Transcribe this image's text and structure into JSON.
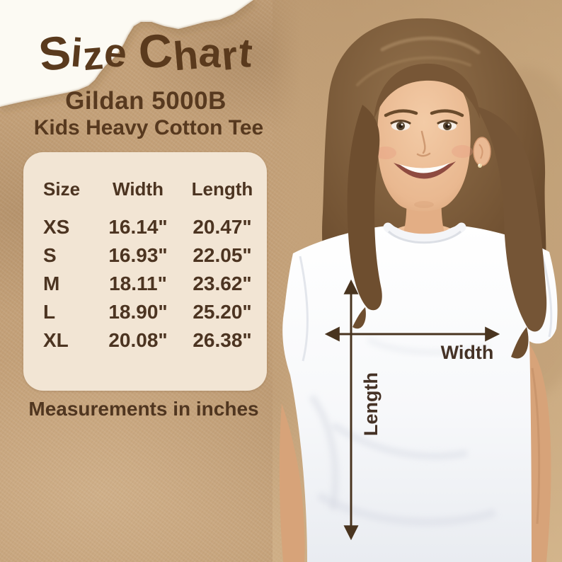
{
  "title": "Size Chart",
  "subtitle_model": "Gildan 5000B",
  "subtitle_product": "Kids Heavy Cotton Tee",
  "caption": "Measurements in inches",
  "table": {
    "headers": [
      "Size",
      "Width",
      "Length"
    ],
    "rows": [
      {
        "size": "XS",
        "width": "16.14\"",
        "length": "20.47\""
      },
      {
        "size": "S",
        "width": "16.93\"",
        "length": "22.05\""
      },
      {
        "size": "M",
        "width": "18.11\"",
        "length": "23.62\""
      },
      {
        "size": "L",
        "width": "18.90\"",
        "length": "25.20\""
      },
      {
        "size": "XL",
        "width": "20.08\"",
        "length": "26.38\""
      }
    ]
  },
  "diagram": {
    "width_label": "Width",
    "length_label": "Length"
  },
  "colors": {
    "kraft_background": "#c3a078",
    "card_cream": "#f2e5d4",
    "text_brown": "#4c3421",
    "title_brown": "#5a3a1d",
    "arrow_brown": "#49341f",
    "torn_paper_white": "#fcfaf3",
    "shirt_white": "#ffffff"
  },
  "chart_data": {
    "type": "table",
    "title": "Size Chart",
    "subtitle": "Gildan 5000B Kids Heavy Cotton Tee",
    "columns": [
      "Size",
      "Width",
      "Length"
    ],
    "rows": [
      [
        "XS",
        "16.14\"",
        "20.47\""
      ],
      [
        "S",
        "16.93\"",
        "22.05\""
      ],
      [
        "M",
        "18.11\"",
        "23.62\""
      ],
      [
        "L",
        "18.90\"",
        "25.20\""
      ],
      [
        "XL",
        "20.08\"",
        "26.38\""
      ]
    ],
    "units": "inches"
  }
}
